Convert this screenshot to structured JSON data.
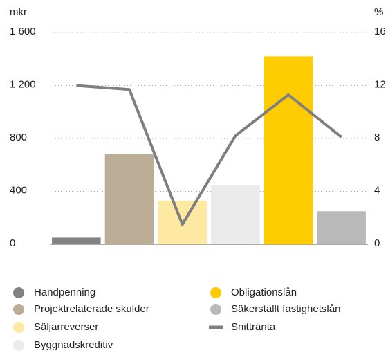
{
  "chart_data": {
    "type": "bar",
    "ylabel": "mkr",
    "y2label": "%",
    "categories": [
      "Handpenning",
      "Projektrelaterade skulder",
      "Säljarreverser",
      "Byggnadskreditiv",
      "Obligationslån",
      "Säkerställt fastighetslån"
    ],
    "values": [
      50,
      680,
      330,
      450,
      1420,
      250
    ],
    "colors": [
      "#828282",
      "#bcae96",
      "#fde9a1",
      "#ebebeb",
      "#fecc00",
      "#b9b9b9"
    ],
    "line": {
      "name": "Snittränta",
      "color": "#7f7f7f",
      "axis": "y2",
      "values": [
        12.0,
        11.7,
        1.5,
        8.2,
        11.3,
        8.1
      ]
    },
    "ylim": [
      0,
      1600
    ],
    "yticks": [
      0,
      400,
      800,
      {
        "value": 1200,
        "label": "1 200"
      },
      {
        "value": 1600,
        "label": "1 600"
      }
    ],
    "y2lim": [
      0,
      16
    ],
    "y2ticks": [
      0,
      4,
      8,
      12,
      16
    ],
    "grid": true
  }
}
